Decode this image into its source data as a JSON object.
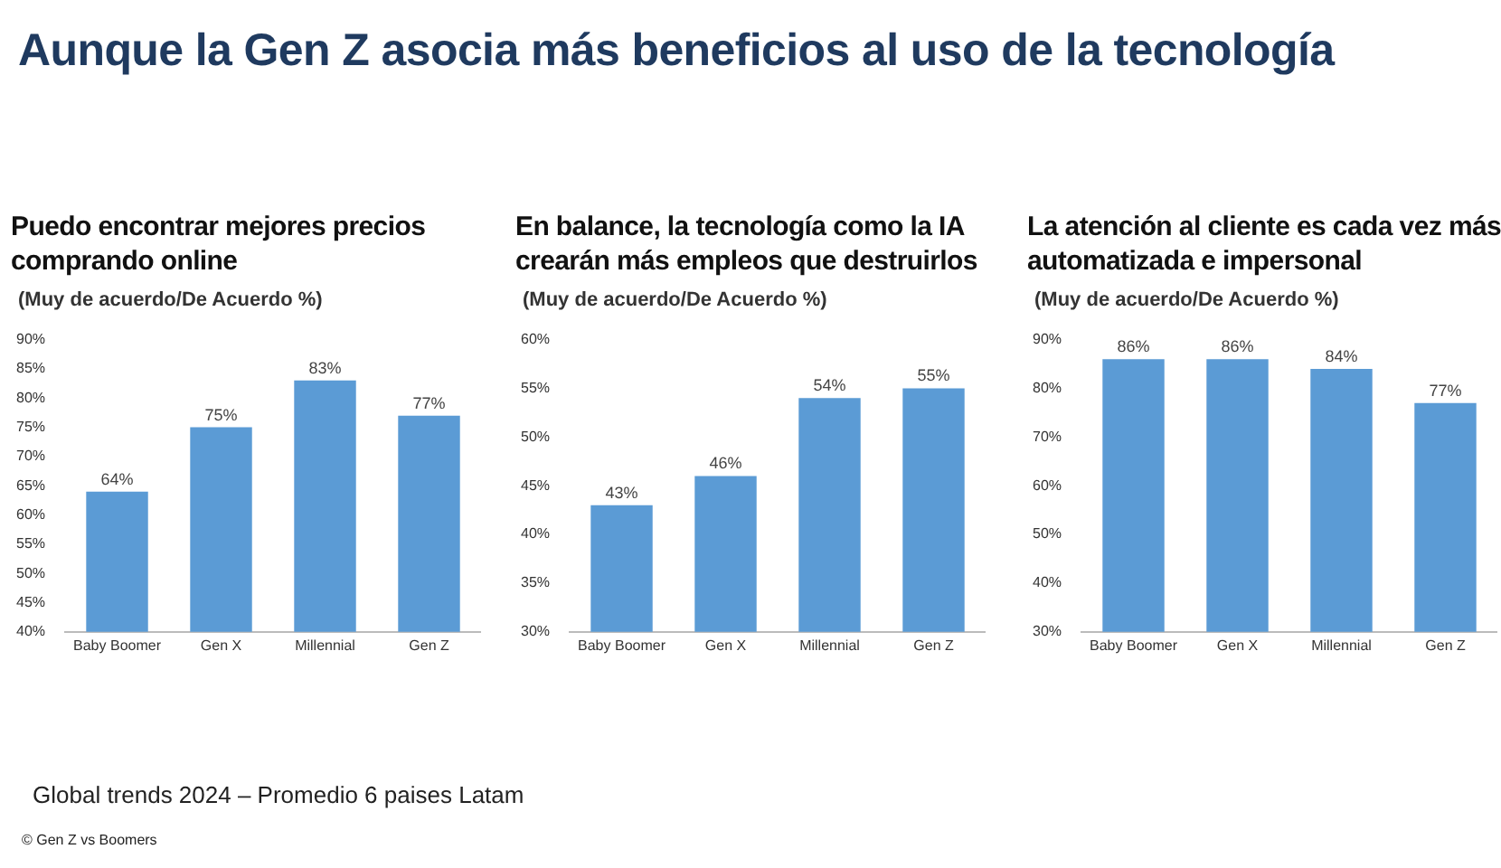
{
  "chart_data": [
    {
      "type": "other",
      "title": "Aunque la Gen Z asocia más beneficios al uso de la tecnología",
      "annotations": [
        "Global trends 2024 – Promedio 6 paises Latam",
        "© Gen Z vs Boomers"
      ]
    },
    {
      "type": "bar",
      "title": "Puedo encontrar mejores precios comprando online",
      "subtitle": "(Muy de acuerdo/De Acuerdo %)",
      "categories": [
        "Baby Boomer",
        "Gen X",
        "Millennial",
        "Gen Z"
      ],
      "values": [
        64,
        75,
        83,
        77
      ],
      "value_labels": [
        "64%",
        "75%",
        "83%",
        "77%"
      ],
      "color": "#5b9bd5",
      "ylim": [
        40,
        90
      ],
      "yticks": [
        {
          "value": 40,
          "label": "40%"
        },
        {
          "value": 45,
          "label": "45%"
        },
        {
          "value": 50,
          "label": "50%"
        },
        {
          "value": 55,
          "label": "55%"
        },
        {
          "value": 60,
          "label": "60%"
        },
        {
          "value": 65,
          "label": "65%"
        },
        {
          "value": 70,
          "label": "70%"
        },
        {
          "value": 75,
          "label": "75%"
        },
        {
          "value": 80,
          "label": "80%"
        },
        {
          "value": 85,
          "label": "85%"
        },
        {
          "value": 90,
          "label": "90%"
        }
      ],
      "grid": false
    },
    {
      "type": "bar",
      "title": "En balance, la tecnología como la IA crearán más empleos que destruirlos",
      "subtitle": "(Muy de acuerdo/De Acuerdo %)",
      "categories": [
        "Baby Boomer",
        "Gen X",
        "Millennial",
        "Gen Z"
      ],
      "values": [
        43,
        46,
        54,
        55
      ],
      "value_labels": [
        "43%",
        "46%",
        "54%",
        "55%"
      ],
      "color": "#5b9bd5",
      "ylim": [
        30,
        60
      ],
      "yticks": [
        {
          "value": 30,
          "label": "30%"
        },
        {
          "value": 35,
          "label": "35%"
        },
        {
          "value": 40,
          "label": "40%"
        },
        {
          "value": 45,
          "label": "45%"
        },
        {
          "value": 50,
          "label": "50%"
        },
        {
          "value": 55,
          "label": "55%"
        },
        {
          "value": 60,
          "label": "60%"
        }
      ],
      "grid": false
    },
    {
      "type": "bar",
      "title": "La atención al cliente es cada vez más automatizada e impersonal",
      "subtitle": "(Muy de acuerdo/De Acuerdo %)",
      "categories": [
        "Baby Boomer",
        "Gen X",
        "Millennial",
        "Gen Z"
      ],
      "values": [
        86,
        86,
        84,
        77
      ],
      "value_labels": [
        "86%",
        "86%",
        "84%",
        "77%"
      ],
      "color": "#5b9bd5",
      "ylim": [
        30,
        90
      ],
      "yticks": [
        {
          "value": 30,
          "label": "30%"
        },
        {
          "value": 40,
          "label": "40%"
        },
        {
          "value": 50,
          "label": "50%"
        },
        {
          "value": 60,
          "label": "60%"
        },
        {
          "value": 70,
          "label": "70%"
        },
        {
          "value": 80,
          "label": "80%"
        },
        {
          "value": 90,
          "label": "90%"
        }
      ],
      "grid": false
    }
  ]
}
